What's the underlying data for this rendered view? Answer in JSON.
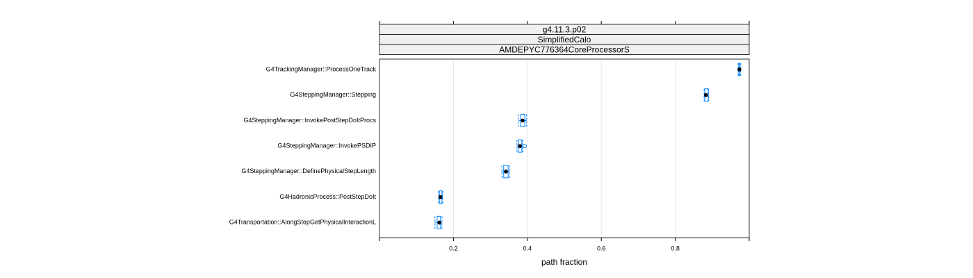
{
  "chart_data": {
    "type": "box",
    "strips": [
      "g4.11.3.p02",
      "SimplifiedCalo",
      "AMDEPYC776364CoreProcessorS"
    ],
    "xlabel": "path fraction",
    "xlim": [
      0,
      1
    ],
    "xticks": [
      0.2,
      0.4,
      0.6,
      0.8
    ],
    "grid": true,
    "color": "#0080ff",
    "categories": [
      "G4TrackingManager::ProcessOneTrack",
      "G4SteppingManager::Stepping",
      "G4SteppingManager::InvokePostStepDoItProcs",
      "G4SteppingManager::InvokePSDIP",
      "G4SteppingManager::DefinePhysicalStepLength",
      "G4HadronicProcess::PostStepDoIt",
      "G4Transportation::AlongStepGetPhysicalInteractionL"
    ],
    "boxes": [
      {
        "min": 0.97,
        "q1": 0.972,
        "median": 0.9735,
        "q3": 0.975,
        "max": 0.977,
        "outliers": []
      },
      {
        "min": 0.878,
        "q1": 0.88,
        "median": 0.883,
        "q3": 0.889,
        "max": 0.89,
        "outliers": []
      },
      {
        "min": 0.376,
        "q1": 0.382,
        "median": 0.387,
        "q3": 0.393,
        "max": 0.398,
        "outliers": []
      },
      {
        "min": 0.372,
        "q1": 0.376,
        "median": 0.38,
        "q3": 0.385,
        "max": 0.387,
        "outliers": [
          0.393
        ]
      },
      {
        "min": 0.331,
        "q1": 0.336,
        "median": 0.342,
        "q3": 0.348,
        "max": 0.352,
        "outliers": []
      },
      {
        "min": 0.16,
        "q1": 0.162,
        "median": 0.165,
        "q3": 0.169,
        "max": 0.171,
        "outliers": []
      },
      {
        "min": 0.15,
        "q1": 0.156,
        "median": 0.162,
        "q3": 0.165,
        "max": 0.169,
        "outliers": []
      }
    ]
  }
}
